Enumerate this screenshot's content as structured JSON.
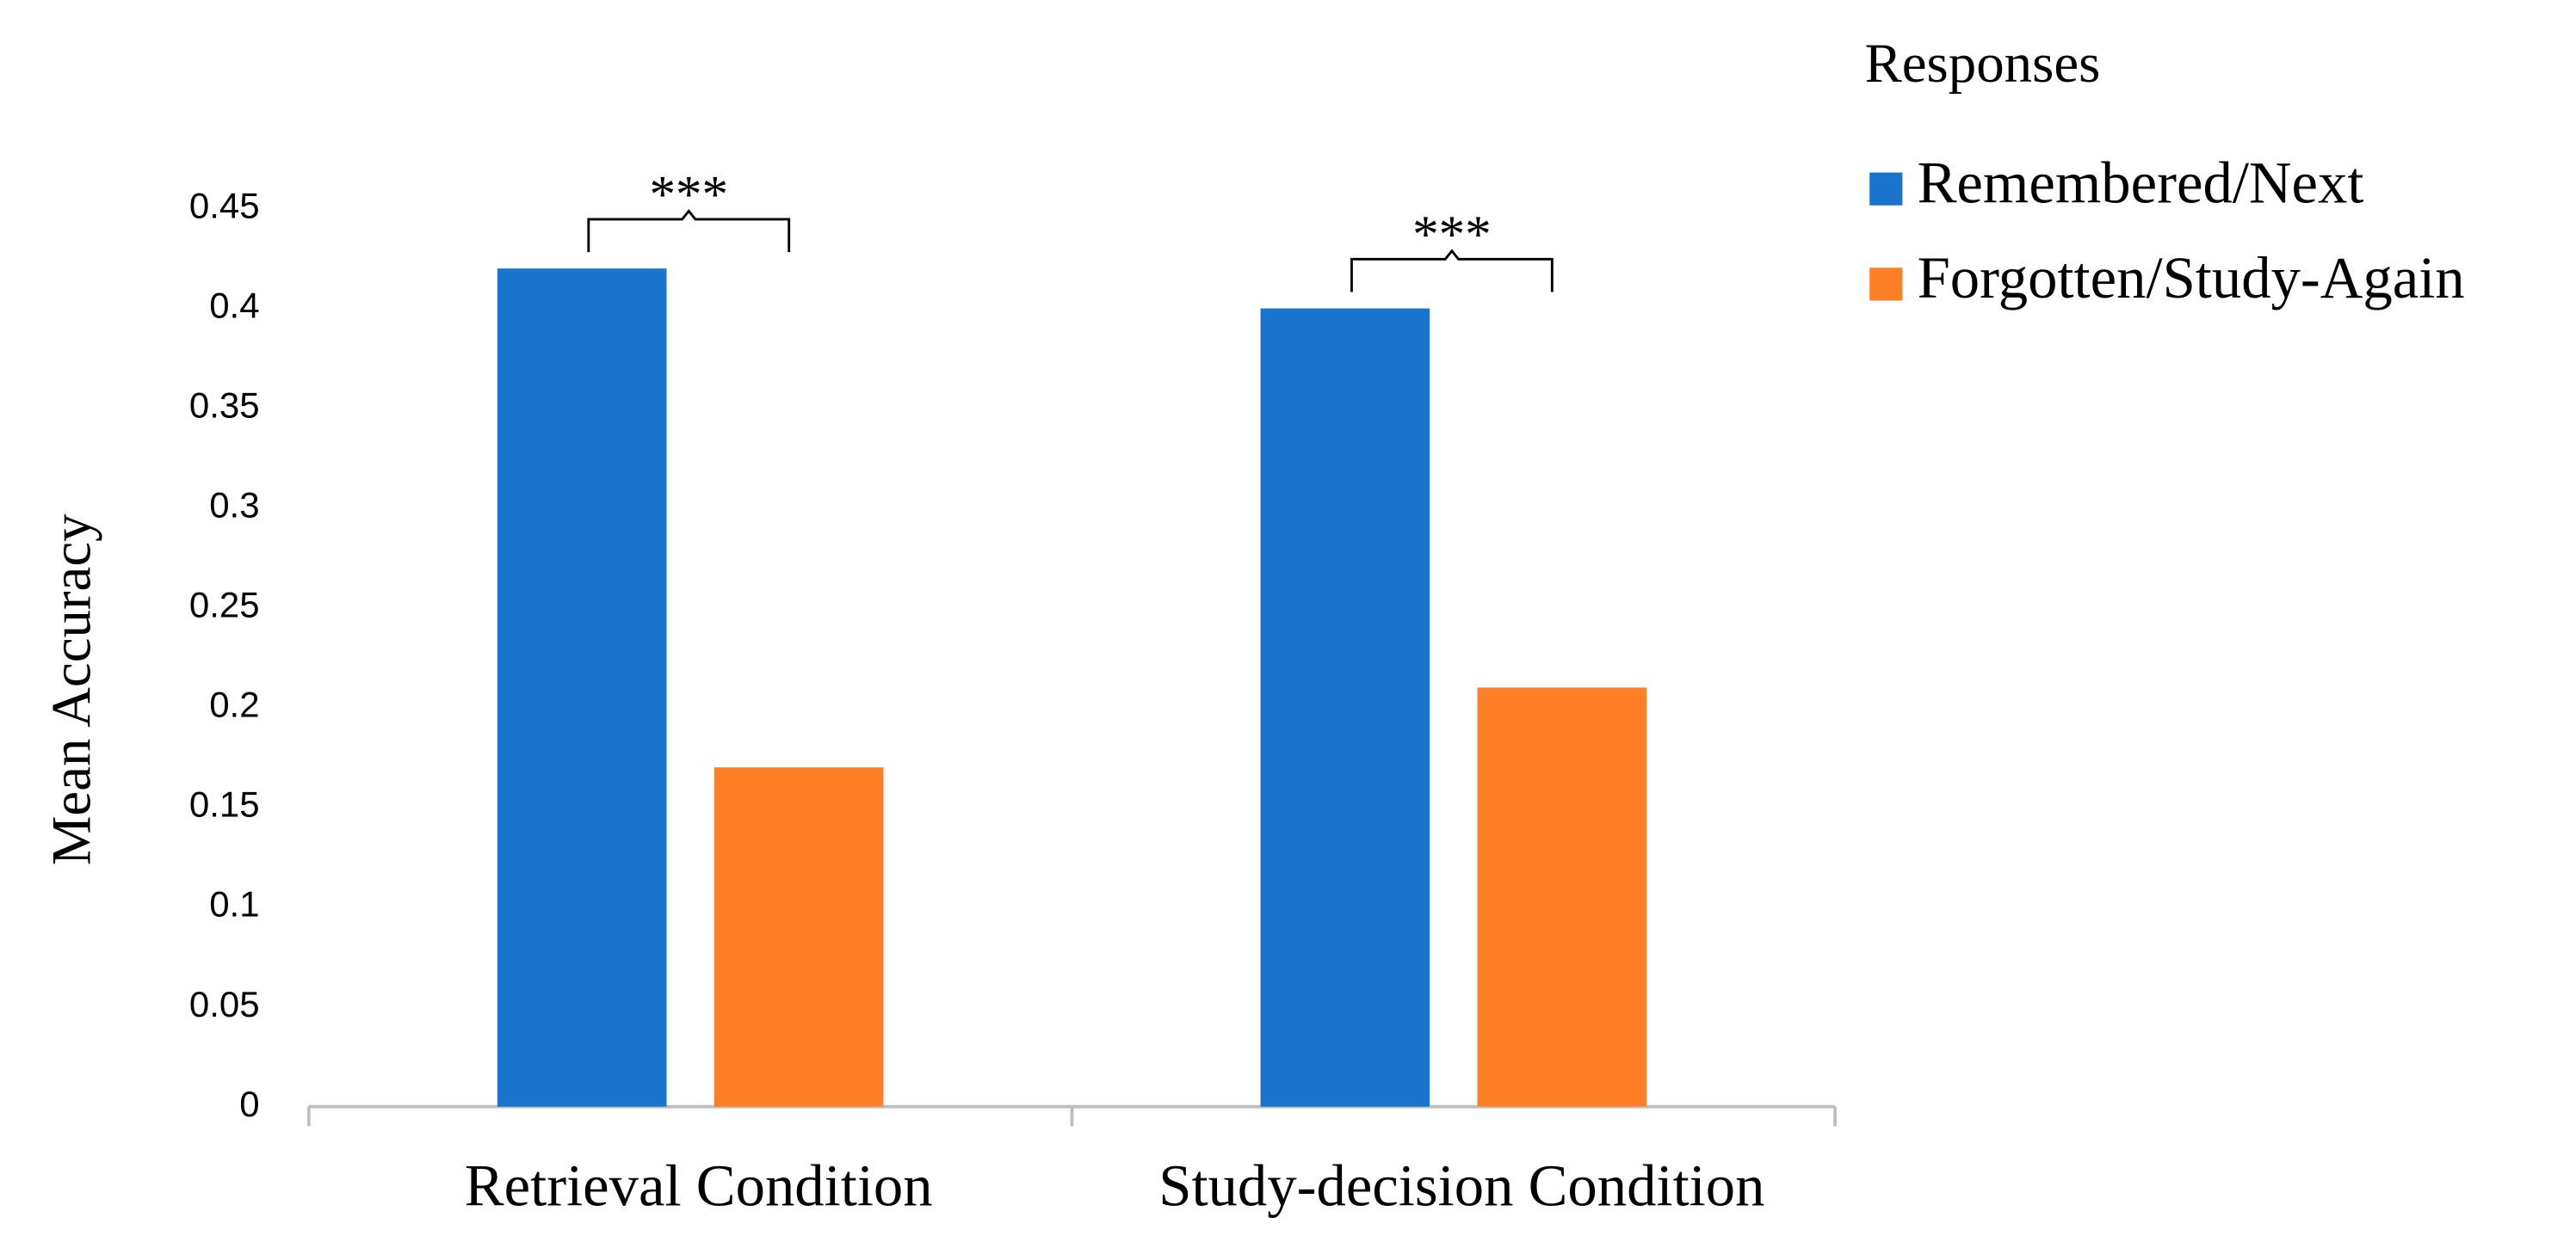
{
  "chart_data": {
    "type": "bar",
    "y_label": "Mean Accuracy",
    "categories": [
      "Retrieval Condition",
      "Study-decision Condition"
    ],
    "series": [
      {
        "name": "Remembered/Next",
        "color": "#1874cd",
        "values": [
          0.42,
          0.4
        ]
      },
      {
        "name": "Forgotten/Study-Again",
        "color": "#ff7f27",
        "values": [
          0.17,
          0.21
        ]
      }
    ],
    "annotations": [
      "***",
      "***"
    ],
    "legend_title": "Responses",
    "legend": "top-right",
    "ylim": [
      0,
      0.45
    ],
    "yticks": [
      0,
      0.05,
      0.1,
      0.15,
      0.2,
      0.25,
      0.3,
      0.35,
      0.4,
      0.45
    ],
    "grid": false
  }
}
